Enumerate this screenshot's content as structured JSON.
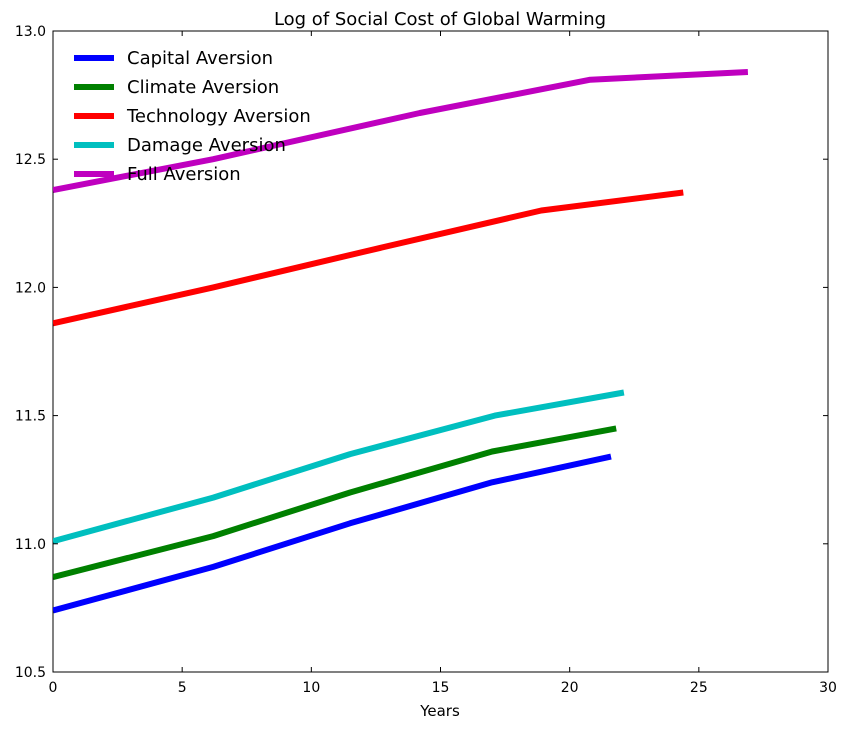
{
  "chart_data": {
    "type": "line",
    "title": "Log of Social Cost of Global Warming",
    "xlabel": "Years",
    "ylabel": "",
    "xlim": [
      0,
      30
    ],
    "ylim": [
      10.5,
      13.0
    ],
    "xticks": [
      "0",
      "5",
      "10",
      "15",
      "20",
      "25",
      "30"
    ],
    "yticks": [
      "10.5",
      "11.0",
      "11.5",
      "12.0",
      "12.5",
      "13.0"
    ],
    "grid": false,
    "legend_position": "top-left",
    "series": [
      {
        "name": "Capital Aversion",
        "color": "#0000ff",
        "points": [
          [
            0,
            10.74
          ],
          [
            6.2,
            10.91
          ],
          [
            11.5,
            11.08
          ],
          [
            17,
            11.24
          ],
          [
            21.6,
            11.34
          ]
        ]
      },
      {
        "name": "Climate Aversion",
        "color": "#008000",
        "points": [
          [
            0,
            10.87
          ],
          [
            6.2,
            11.03
          ],
          [
            11.5,
            11.2
          ],
          [
            17,
            11.36
          ],
          [
            21.8,
            11.45
          ]
        ]
      },
      {
        "name": "Technology Aversion",
        "color": "#ff0000",
        "points": [
          [
            0,
            11.86
          ],
          [
            6.2,
            12.0
          ],
          [
            12.5,
            12.15
          ],
          [
            18.9,
            12.3
          ],
          [
            24.4,
            12.37
          ]
        ]
      },
      {
        "name": "Damage Aversion",
        "color": "#00bfbf",
        "points": [
          [
            0,
            11.01
          ],
          [
            6.2,
            11.18
          ],
          [
            11.5,
            11.35
          ],
          [
            17.1,
            11.5
          ],
          [
            22.1,
            11.59
          ]
        ]
      },
      {
        "name": "Full Aversion",
        "color": "#bf00bf",
        "points": [
          [
            0,
            12.38
          ],
          [
            6.2,
            12.5
          ],
          [
            14.2,
            12.68
          ],
          [
            20.8,
            12.81
          ],
          [
            26.9,
            12.84
          ]
        ]
      }
    ]
  }
}
